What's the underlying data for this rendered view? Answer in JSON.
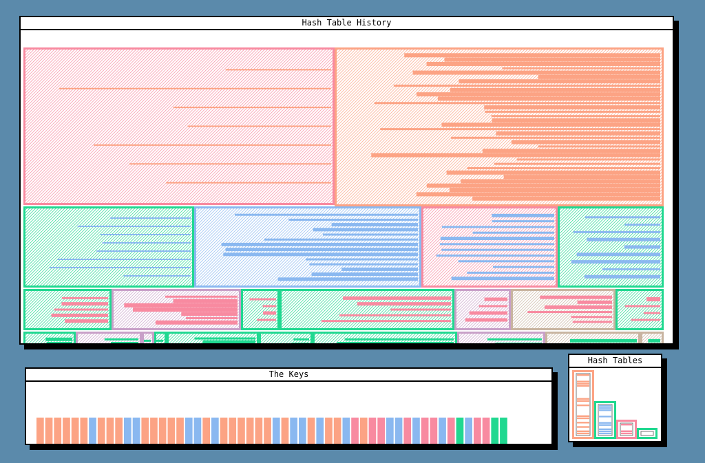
{
  "windows": {
    "history": {
      "title": "Hash Table History"
    },
    "keys": {
      "title": "The Keys"
    },
    "tables": {
      "title": "Hash Tables"
    }
  },
  "colors": {
    "salmon": "#fca384",
    "blue": "#8ab8f0",
    "pink": "#f88aa0",
    "green": "#20d890",
    "mauve": "#c8a0c8",
    "tan": "#c8b4a0",
    "desktop": "#5b8aab"
  },
  "keys": [
    "salmon",
    "salmon",
    "salmon",
    "salmon",
    "salmon",
    "salmon",
    "blue",
    "salmon",
    "salmon",
    "salmon",
    "blue",
    "blue",
    "salmon",
    "salmon",
    "salmon",
    "salmon",
    "salmon",
    "blue",
    "blue",
    "salmon",
    "blue",
    "salmon",
    "salmon",
    "salmon",
    "salmon",
    "salmon",
    "salmon",
    "blue",
    "salmon",
    "blue",
    "blue",
    "salmon",
    "blue",
    "salmon",
    "salmon",
    "blue",
    "pink",
    "salmon",
    "pink",
    "pink",
    "blue",
    "blue",
    "pink",
    "blue",
    "pink",
    "pink",
    "blue",
    "pink",
    "green",
    "blue",
    "pink",
    "pink",
    "green",
    "green"
  ],
  "tables": [
    {
      "color": "salmon",
      "size": 16
    },
    {
      "color": "green",
      "size": 8
    },
    {
      "color": "pink",
      "size": 4
    },
    {
      "color": "green",
      "size": 2
    }
  ]
}
